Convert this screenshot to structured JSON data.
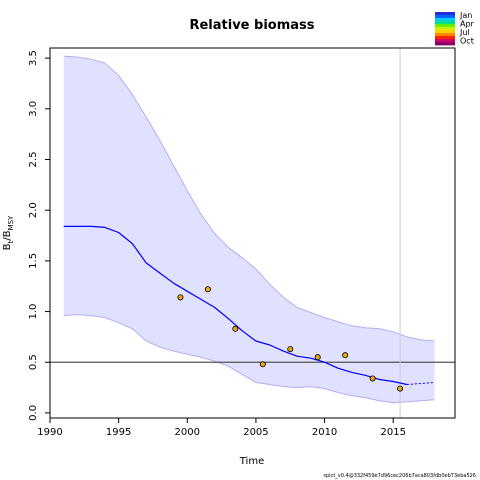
{
  "chart_data": {
    "type": "line",
    "title": "Relative biomass",
    "xlabel": "Time",
    "ylabel": {
      "base": "B",
      "sub1": "t",
      "sep": "/B",
      "sub2": "MSY"
    },
    "xlim": [
      1990,
      2019.5
    ],
    "ylim": [
      -0.05,
      3.6
    ],
    "xticks": [
      1990,
      1995,
      2000,
      2005,
      2010,
      2015
    ],
    "yticks": [
      "0.0",
      "0.5",
      "1.0",
      "1.5",
      "2.0",
      "2.5",
      "3.0",
      "3.5"
    ],
    "reference_line_y": 0.5,
    "vertical_line_x": 2015.5,
    "estimate": {
      "x": [
        1991,
        1992,
        1993,
        1994,
        1995,
        1996,
        1997,
        1998,
        1999,
        2000,
        2001,
        2002,
        2003,
        2004,
        2005,
        2006,
        2007,
        2008,
        2009,
        2010,
        2011,
        2012,
        2013,
        2014,
        2015,
        2016
      ],
      "y": [
        1.84,
        1.84,
        1.84,
        1.83,
        1.78,
        1.67,
        1.48,
        1.38,
        1.28,
        1.2,
        1.12,
        1.04,
        0.93,
        0.81,
        0.71,
        0.67,
        0.61,
        0.56,
        0.54,
        0.5,
        0.44,
        0.4,
        0.37,
        0.33,
        0.31,
        0.28
      ]
    },
    "forecast": {
      "x": [
        2016,
        2017,
        2018
      ],
      "y": [
        0.28,
        0.29,
        0.3
      ]
    },
    "ci_upper": {
      "x": [
        1991,
        1992,
        1993,
        1994,
        1995,
        1996,
        1997,
        1998,
        1999,
        2000,
        2001,
        2002,
        2003,
        2004,
        2005,
        2006,
        2007,
        2008,
        2009,
        2010,
        2011,
        2012,
        2013,
        2014,
        2015,
        2016,
        2017,
        2018
      ],
      "y": [
        3.52,
        3.51,
        3.49,
        3.45,
        3.33,
        3.14,
        2.92,
        2.69,
        2.44,
        2.19,
        1.96,
        1.77,
        1.63,
        1.53,
        1.42,
        1.27,
        1.14,
        1.04,
        0.99,
        0.94,
        0.9,
        0.86,
        0.84,
        0.83,
        0.8,
        0.75,
        0.72,
        0.71
      ]
    },
    "ci_lower": {
      "x": [
        1991,
        1992,
        1993,
        1994,
        1995,
        1996,
        1997,
        1998,
        1999,
        2000,
        2001,
        2002,
        2003,
        2004,
        2005,
        2006,
        2007,
        2008,
        2009,
        2010,
        2011,
        2012,
        2013,
        2014,
        2015,
        2016,
        2017,
        2018
      ],
      "y": [
        0.96,
        0.97,
        0.96,
        0.94,
        0.89,
        0.83,
        0.71,
        0.65,
        0.61,
        0.58,
        0.55,
        0.51,
        0.46,
        0.38,
        0.3,
        0.28,
        0.26,
        0.25,
        0.26,
        0.24,
        0.2,
        0.17,
        0.15,
        0.12,
        0.1,
        0.11,
        0.12,
        0.13
      ]
    },
    "observations": {
      "x": [
        1999.5,
        2001.5,
        2003.5,
        2005.5,
        2007.5,
        2009.5,
        2011.5,
        2013.5,
        2015.5
      ],
      "y": [
        1.14,
        1.22,
        0.83,
        0.48,
        0.63,
        0.55,
        0.57,
        0.34,
        0.24
      ]
    },
    "legend": {
      "position": "top-right",
      "labels": [
        "Jan",
        "Apr",
        "Jul",
        "Oct"
      ],
      "colors": [
        "#2b2bd6",
        "#0066ff",
        "#00ccff",
        "#00e08a",
        "#66ee00",
        "#ccee00",
        "#ffd000",
        "#ff8800",
        "#ff2200",
        "#cc0066",
        "#880066"
      ]
    },
    "footer": "spict_v0.4@332f459e7d96cec206b7aca803fdb0eb73eba526",
    "colors": {
      "estimate": "#0000ff",
      "ci_fill": "#e0e0ff",
      "ci_line": "#b0b0f0",
      "observation_fill": "#e6a817",
      "reference": "#555555",
      "vertical": "#cccccc"
    }
  }
}
